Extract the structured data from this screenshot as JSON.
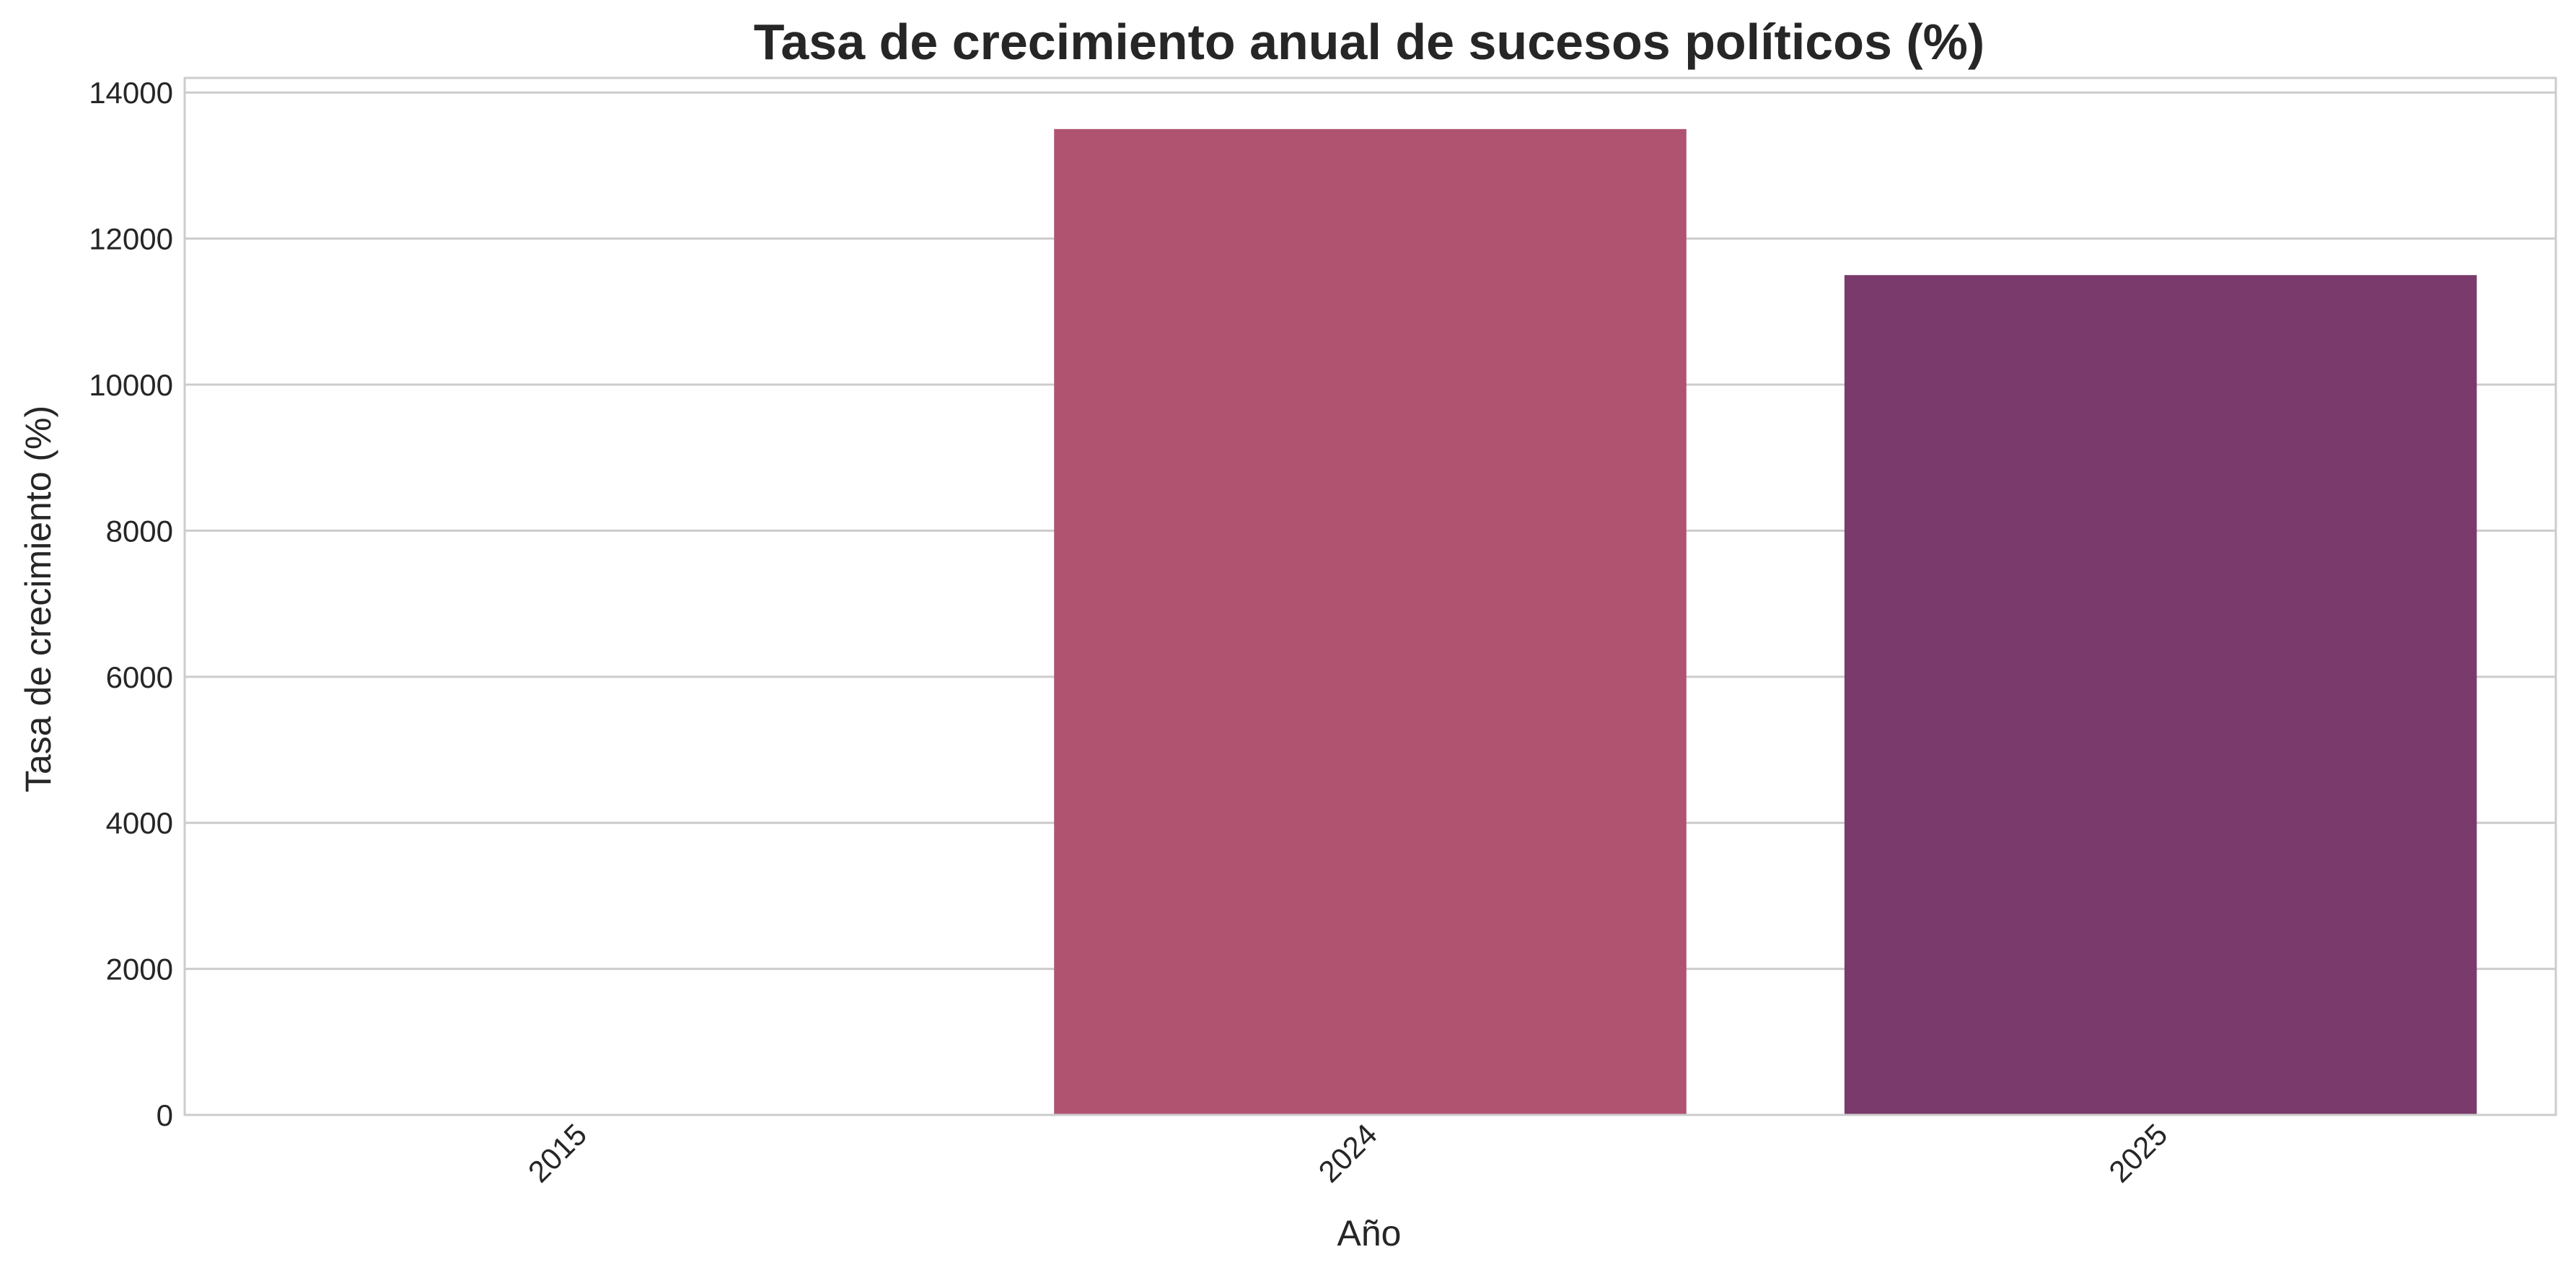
{
  "chart_data": {
    "type": "bar",
    "title": "Tasa de crecimiento anual de sucesos políticos (%)",
    "xlabel": "Año",
    "ylabel": "Tasa de crecimiento (%)",
    "categories": [
      "2015",
      "2024",
      "2025"
    ],
    "values": [
      0,
      13500,
      11500
    ],
    "colors": [
      "#b5476b",
      "#b05370",
      "#7a3a6b"
    ],
    "ylim": [
      0,
      14200
    ],
    "yticks": [
      0,
      2000,
      4000,
      6000,
      8000,
      10000,
      12000,
      14000
    ],
    "grid": true,
    "legend": "none"
  }
}
